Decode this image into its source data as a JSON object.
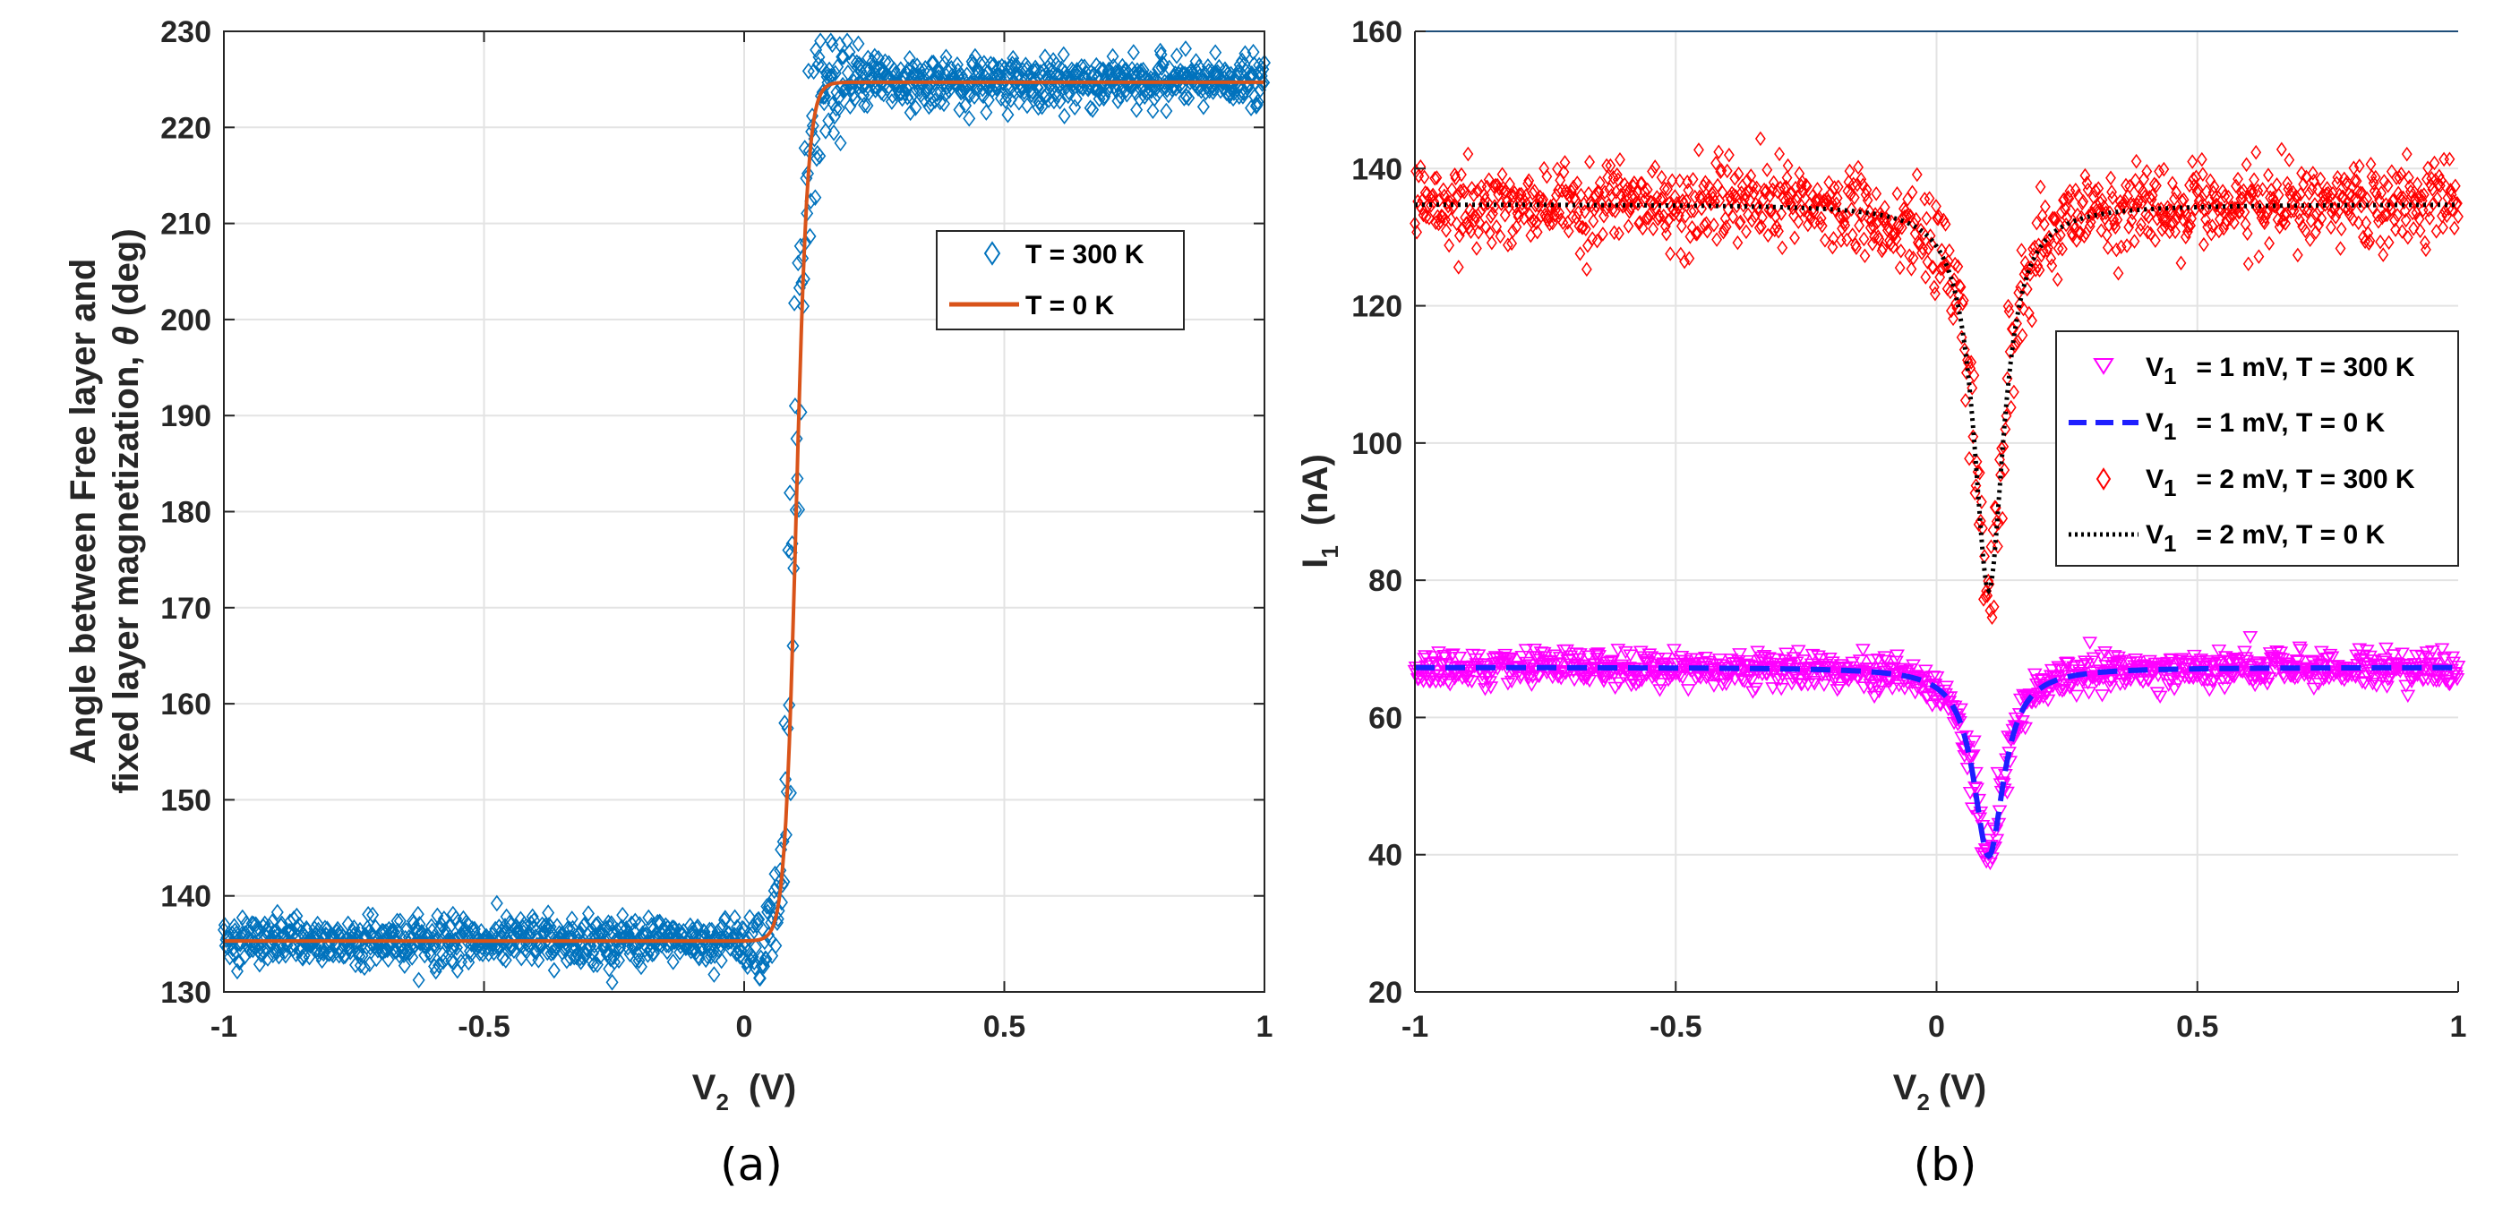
{
  "chart_data": [
    {
      "panel": "a",
      "type": "scatter",
      "caption": "(a)",
      "xlabel_main": "V",
      "xlabel_sub": "2",
      "xlabel_unit": "(V)",
      "ylabel_line1": "Angle between Free layer and",
      "ylabel_line2_prefix": "fixed layer magnetization, ",
      "ylabel_symbol": "θ",
      "ylabel_line2_suffix": " (deg)",
      "xlim": [
        -1,
        1
      ],
      "ylim": [
        130,
        230
      ],
      "xticks": [
        -1,
        -0.5,
        0,
        0.5,
        1
      ],
      "xtick_labels": [
        "-1",
        "-0.5",
        "0",
        "0.5",
        "1"
      ],
      "yticks": [
        130,
        140,
        150,
        160,
        170,
        180,
        190,
        200,
        210,
        220,
        230
      ],
      "yticks_labels": [
        "130",
        "140",
        "150",
        "160",
        "170",
        "180",
        "190",
        "200",
        "210",
        "220",
        "230"
      ],
      "grid": true,
      "legend_position": "upper-right",
      "series": [
        {
          "name": "T = 300 K",
          "kind": "scatter",
          "marker": "diamond",
          "color": "#0072bd",
          "model": "tanh",
          "params": {
            "low": 135.3,
            "high": 224.7,
            "center": 0.1,
            "width": 0.022,
            "noise_far": 1.2,
            "noise_near": 9
          }
        },
        {
          "name": "T = 0 K",
          "kind": "line",
          "color": "#d95319",
          "model": "tanh",
          "params": {
            "low": 135.3,
            "high": 224.7,
            "center": 0.1,
            "width": 0.022
          }
        }
      ]
    },
    {
      "panel": "b",
      "type": "scatter",
      "caption": "(b)",
      "xlabel_main": "V",
      "xlabel_sub": "2",
      "xlabel_unit": "(V)",
      "ylabel_main": "I",
      "ylabel_sub": "1",
      "ylabel_unit": "(nA)",
      "xlim": [
        -1,
        1
      ],
      "ylim": [
        20,
        160
      ],
      "xticks": [
        -1,
        -0.5,
        0,
        0.5,
        1
      ],
      "xtick_labels": [
        "-1",
        "-0.5",
        "0",
        "0.5",
        "1"
      ],
      "yticks": [
        20,
        40,
        60,
        80,
        100,
        120,
        140,
        160
      ],
      "yticks_labels": [
        "20",
        "40",
        "60",
        "80",
        "100",
        "120",
        "140",
        "160"
      ],
      "grid": true,
      "legend_position": "center-right",
      "series": [
        {
          "name_main": "V",
          "name_sub": "1",
          "name_rest": "= 1 mV, T = 300 K",
          "kind": "scatter",
          "marker": "triangle-down",
          "color": "#ff00ff",
          "model": "dip",
          "params": {
            "base": 67.3,
            "dip": 27.5,
            "center": 0.1,
            "width": 0.035,
            "noise": 1.3
          }
        },
        {
          "name_main": "V",
          "name_sub": "1",
          "name_rest": "= 1 mV, T = 0 K",
          "kind": "line",
          "style": "dashed",
          "color": "#1f1fff",
          "model": "dip",
          "params": {
            "base": 67.3,
            "dip": 27.5,
            "center": 0.1,
            "width": 0.035
          }
        },
        {
          "name_main": "V",
          "name_sub": "1",
          "name_rest": "= 2 mV, T = 300 K",
          "kind": "scatter",
          "marker": "diamond",
          "color": "#ff0000",
          "model": "dip",
          "params": {
            "base": 134.8,
            "dip": 56.3,
            "center": 0.1,
            "width": 0.035,
            "noise": 3
          }
        },
        {
          "name_main": "V",
          "name_sub": "1",
          "name_rest": "= 2 mV, T = 0 K",
          "kind": "line",
          "style": "dotted",
          "color": "#000000",
          "model": "dip",
          "params": {
            "base": 134.8,
            "dip": 56.3,
            "center": 0.1,
            "width": 0.035
          }
        }
      ]
    }
  ]
}
